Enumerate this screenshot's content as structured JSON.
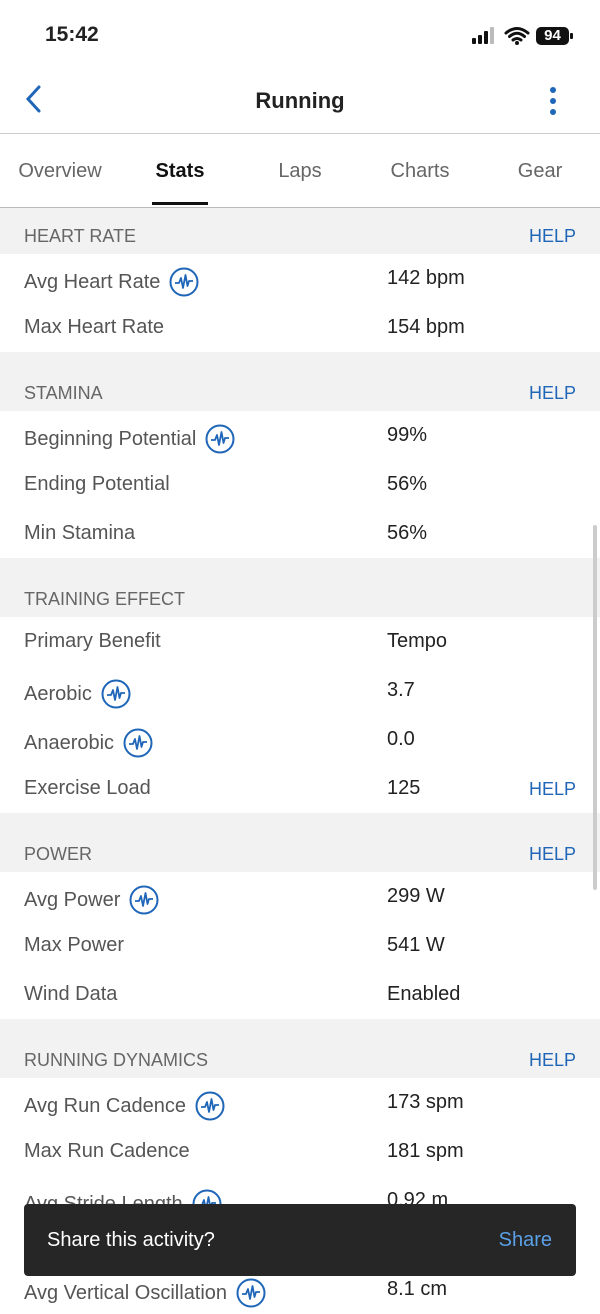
{
  "status": {
    "time": "15:42",
    "battery": "94"
  },
  "header": {
    "title": "Running"
  },
  "tabs": [
    "Overview",
    "Stats",
    "Laps",
    "Charts",
    "Gear"
  ],
  "sections": [
    {
      "title": "HEART RATE",
      "help": "HELP",
      "rows": [
        {
          "label": "Avg Heart Rate",
          "value": "142 bpm",
          "icon": true
        },
        {
          "label": "Max Heart Rate",
          "value": "154 bpm"
        }
      ]
    },
    {
      "title": "STAMINA",
      "help": "HELP",
      "rows": [
        {
          "label": "Beginning Potential",
          "value": "99%",
          "icon": true
        },
        {
          "label": "Ending Potential",
          "value": "56%"
        },
        {
          "label": "Min Stamina",
          "value": "56%"
        }
      ]
    },
    {
      "title": "TRAINING EFFECT",
      "rows": [
        {
          "label": "Primary Benefit",
          "value": "Tempo"
        },
        {
          "label": "Aerobic",
          "value": "3.7",
          "icon": true
        },
        {
          "label": "Anaerobic",
          "value": "0.0",
          "icon": true
        },
        {
          "label": "Exercise Load",
          "value": "125",
          "help": "HELP"
        }
      ]
    },
    {
      "title": "POWER",
      "help": "HELP",
      "rows": [
        {
          "label": "Avg Power",
          "value": "299 W",
          "icon": true
        },
        {
          "label": "Max Power",
          "value": "541 W"
        },
        {
          "label": "Wind Data",
          "value": "Enabled"
        }
      ]
    },
    {
      "title": "RUNNING DYNAMICS",
      "help": "HELP",
      "rows": [
        {
          "label": "Avg Run Cadence",
          "value": "173 spm",
          "icon": true
        },
        {
          "label": "Max Run Cadence",
          "value": "181 spm"
        },
        {
          "label": "Avg Stride Length",
          "value": "0.92 m",
          "icon": true
        },
        {
          "label": "Avg Vertical Oscillation",
          "value": "8.1 cm",
          "icon": true
        }
      ]
    }
  ],
  "toast": {
    "text": "Share this activity?",
    "action": "Share"
  }
}
